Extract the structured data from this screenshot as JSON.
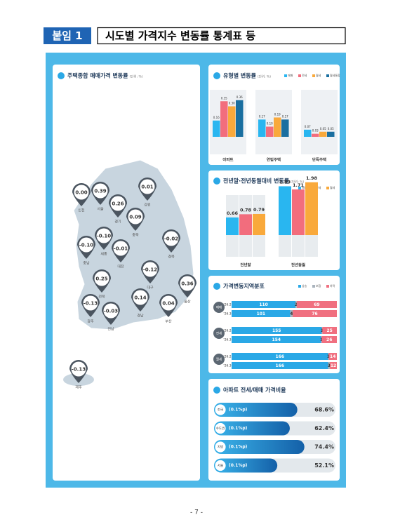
{
  "header": {
    "badge": "붙임 1",
    "title": "시도별 가격지수 변동률 통계표 등"
  },
  "map": {
    "title": "주택종합 매매가격 변동률",
    "unit": "(단위: %)",
    "regions": [
      {
        "name": "인천",
        "value": "0.00"
      },
      {
        "name": "서울",
        "value": "0.39"
      },
      {
        "name": "경기",
        "value": "0.26"
      },
      {
        "name": "강원",
        "value": "0.01"
      },
      {
        "name": "충북",
        "value": "0.09"
      },
      {
        "name": "세종",
        "value": "-0.10"
      },
      {
        "name": "충남",
        "value": "-0.10"
      },
      {
        "name": "대전",
        "value": "-0.01"
      },
      {
        "name": "경북",
        "value": "-0.02"
      },
      {
        "name": "대구",
        "value": "-0.12"
      },
      {
        "name": "전북",
        "value": "0.25"
      },
      {
        "name": "울산",
        "value": "0.36"
      },
      {
        "name": "광주",
        "value": "-0.13"
      },
      {
        "name": "전남",
        "value": "-0.03"
      },
      {
        "name": "경남",
        "value": "0.14"
      },
      {
        "name": "부산",
        "value": "0.04"
      },
      {
        "name": "제주",
        "value": "-0.13"
      }
    ]
  },
  "type_chart": {
    "title": "유형별 변동률",
    "unit": "(단위: %)",
    "series": [
      {
        "name": "매매",
        "color": "#29b6f0"
      },
      {
        "name": "전세",
        "color": "#f26d7d"
      },
      {
        "name": "월세",
        "color": "#f9a93b"
      },
      {
        "name": "월세통합",
        "color": "#1a6fa0"
      }
    ],
    "groups": [
      {
        "name": "아파트",
        "values": [
          0.16,
          0.35,
          0.3,
          0.36
        ],
        "value_labels": [
          "0.16",
          "0.35",
          "0.30",
          "0.36"
        ]
      },
      {
        "name": "연립주택",
        "values": [
          0.17,
          0.1,
          0.19,
          0.17
        ],
        "value_labels": [
          "0.17",
          "0.10",
          "0.19",
          "0.17"
        ]
      },
      {
        "name": "단독주택",
        "values": [
          0.07,
          0.03,
          0.05,
          0.05
        ],
        "value_labels": [
          "0.07",
          "0.03",
          "0.05",
          "0.05"
        ]
      }
    ]
  },
  "yoy_chart": {
    "title": "전년말·전년동월대비 변동률",
    "unit": "(단위: %)",
    "series": [
      {
        "name": "매매",
        "color": "#29b6f0"
      },
      {
        "name": "전세",
        "color": "#f26d7d"
      },
      {
        "name": "월세",
        "color": "#f9a93b"
      }
    ],
    "groups": [
      {
        "name": "전년말",
        "values": [
          0.66,
          0.78,
          0.79
        ]
      },
      {
        "name": "전년동월",
        "values": [
          1.83,
          1.71,
          1.98
        ]
      }
    ]
  },
  "dist_chart": {
    "title": "가격변동지역분포",
    "series": [
      {
        "name": "상승",
        "color": "#2aa8e6"
      },
      {
        "name": "보합",
        "color": "#a9b3bd"
      },
      {
        "name": "하락",
        "color": "#f07080"
      }
    ],
    "groups": [
      {
        "name": "매매",
        "rows": [
          {
            "period": "'26.2",
            "values": [
              110,
              2,
              69
            ]
          },
          {
            "period": "'26.3",
            "values": [
              101,
              4,
              76
            ]
          }
        ]
      },
      {
        "name": "전세",
        "rows": [
          {
            "period": "'26.2",
            "values": [
              155,
              1,
              25
            ]
          },
          {
            "period": "'26.3",
            "values": [
              154,
              1,
              26
            ]
          }
        ]
      },
      {
        "name": "월세",
        "rows": [
          {
            "period": "'26.2",
            "values": [
              166,
              1,
              14
            ]
          },
          {
            "period": "'26.3",
            "values": [
              166,
              3,
              12
            ]
          }
        ]
      }
    ]
  },
  "ratio_chart": {
    "title": "아파트 전세/매매 가격비율",
    "rows": [
      {
        "name": "전국",
        "change": "(0.1%p)",
        "value": 68.6,
        "value_label": "68.6%"
      },
      {
        "name": "수도권",
        "change": "(0.1%p)",
        "value": 62.4,
        "value_label": "62.4%"
      },
      {
        "name": "지방",
        "change": "(0.1%p)",
        "value": 74.4,
        "value_label": "74.4%"
      },
      {
        "name": "서울",
        "change": "(0.1%p)",
        "value": 52.1,
        "value_label": "52.1%"
      }
    ]
  },
  "footer": "- 7 -"
}
